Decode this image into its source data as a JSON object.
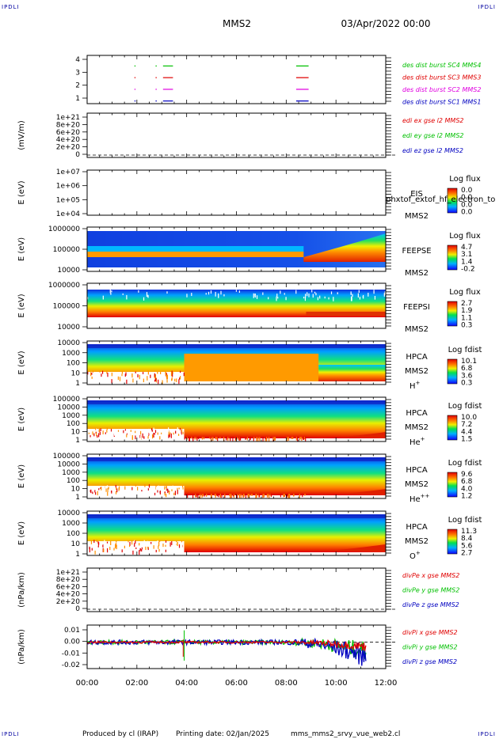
{
  "header": {
    "corner_label": "IPDLI",
    "title": "MMS2",
    "date": "03/Apr/2022 00:00"
  },
  "footer": {
    "produced": "Produced by cl (IRAP)",
    "printing": "Printing date: 02/Jan/2025",
    "file": "mms_mms2_srvy_vue_web2.cl"
  },
  "colors": {
    "bg": "#ffffff",
    "axis": "#000000"
  },
  "chart_data": [
    {
      "type": "line",
      "panel": "burst",
      "ylim": [
        0.5,
        4.5
      ],
      "yticks": [
        "4",
        "3",
        "2",
        "1"
      ],
      "series": [
        {
          "name": "des dist burst SC1 MMS1",
          "color": "#0000c0",
          "y": 1,
          "segments": [
            [
              1.9,
              1.9
            ],
            [
              2.75,
              2.75
            ],
            [
              3.05,
              3.45
            ],
            [
              8.4,
              8.9
            ]
          ]
        },
        {
          "name": "des dist burst SC2 MMS2",
          "color": "#e000e0",
          "y": 2,
          "segments": [
            [
              1.9,
              1.9
            ],
            [
              2.75,
              2.75
            ],
            [
              3.05,
              3.45
            ],
            [
              8.4,
              8.9
            ]
          ]
        },
        {
          "name": "des dist burst SC3 MMS3",
          "color": "#e00000",
          "y": 3,
          "segments": [
            [
              1.9,
              1.9
            ],
            [
              2.75,
              2.75
            ],
            [
              3.05,
              3.45
            ],
            [
              8.4,
              8.9
            ]
          ]
        },
        {
          "name": "des dist burst SC4 MMS4",
          "color": "#00c000",
          "y": 4,
          "segments": [
            [
              1.9,
              1.9
            ],
            [
              2.75,
              2.75
            ],
            [
              3.05,
              3.45
            ],
            [
              8.4,
              8.9
            ]
          ]
        }
      ]
    },
    {
      "type": "line",
      "panel": "edi",
      "ylabel": "(mV/m)",
      "yticks": [
        "1e+21",
        "8e+20",
        "6e+20",
        "4e+20",
        "2e+20",
        "0"
      ],
      "series": [
        {
          "name": "edi ex gse l2 MMS2",
          "color": "#e00000"
        },
        {
          "name": "edi ey gse l2 MMS2",
          "color": "#00c000"
        },
        {
          "name": "edi ez gse l2 MMS2",
          "color": "#0000c0"
        }
      ]
    },
    {
      "type": "heatmap",
      "panel": "eis",
      "ylabel": "E (eV)",
      "yticks": [
        "1e+07",
        "1e+06",
        "1e+05",
        "1e+04"
      ],
      "instrument": [
        "EIS",
        "MMS2"
      ],
      "overlay": "phxtof_extof_hf_electron_to",
      "colorbar": {
        "title": "Log flux",
        "ticks": [
          "0.0",
          "0.0",
          "0.0",
          "0.0"
        ]
      }
    },
    {
      "type": "heatmap",
      "panel": "feepse",
      "ylabel": "E (eV)",
      "yticks": [
        "1000000",
        "100000",
        "10000"
      ],
      "instrument": [
        "FEEPSE",
        "MMS2"
      ],
      "colorbar": {
        "title": "Log flux",
        "ticks": [
          "4.7",
          "3.1",
          "1.4",
          "-0.2"
        ]
      }
    },
    {
      "type": "heatmap",
      "panel": "feepsi",
      "ylabel": "E (eV)",
      "yticks": [
        "1000000",
        "100000",
        "10000"
      ],
      "instrument": [
        "FEEPSI",
        "MMS2"
      ],
      "colorbar": {
        "title": "Log flux",
        "ticks": [
          "2.7",
          "1.9",
          "1.1",
          "0.3"
        ]
      }
    },
    {
      "type": "heatmap",
      "panel": "hpca_h",
      "ylabel": "E (eV)",
      "yticks": [
        "10000",
        "1000",
        "100",
        "10",
        "1"
      ],
      "instrument": [
        "HPCA",
        "MMS2"
      ],
      "species": "H",
      "species_sup": "+",
      "colorbar": {
        "title": "Log fdist",
        "ticks": [
          "10.1",
          "6.8",
          "3.6",
          "0.3"
        ]
      }
    },
    {
      "type": "heatmap",
      "panel": "hpca_he",
      "ylabel": "E (eV)",
      "yticks": [
        "100000",
        "10000",
        "1000",
        "100",
        "10",
        "1"
      ],
      "instrument": [
        "HPCA",
        "MMS2"
      ],
      "species": "He",
      "species_sup": "+",
      "colorbar": {
        "title": "Log fdist",
        "ticks": [
          "10.0",
          "7.2",
          "4.4",
          "1.5"
        ]
      }
    },
    {
      "type": "heatmap",
      "panel": "hpca_he2",
      "ylabel": "E (eV)",
      "yticks": [
        "100000",
        "10000",
        "1000",
        "100",
        "10",
        "1"
      ],
      "instrument": [
        "HPCA",
        "MMS2"
      ],
      "species": "He",
      "species_sup": "++",
      "colorbar": {
        "title": "Log fdist",
        "ticks": [
          "9.6",
          "6.8",
          "4.0",
          "1.2"
        ]
      }
    },
    {
      "type": "heatmap",
      "panel": "hpca_o",
      "ylabel": "E (eV)",
      "yticks": [
        "10000",
        "1000",
        "100",
        "10",
        "1"
      ],
      "instrument": [
        "HPCA",
        "MMS2"
      ],
      "species": "O",
      "species_sup": "+",
      "colorbar": {
        "title": "Log fdist",
        "ticks": [
          "11.3",
          "8.4",
          "5.6",
          "2.7"
        ]
      }
    },
    {
      "type": "line",
      "panel": "divpe",
      "ylabel": "(nPa/km)",
      "yticks": [
        "1e+21",
        "8e+20",
        "6e+20",
        "4e+20",
        "2e+20",
        "0"
      ],
      "series": [
        {
          "name": "divPe x gse MMS2",
          "color": "#e00000"
        },
        {
          "name": "divPe y gse MMS2",
          "color": "#00c000"
        },
        {
          "name": "divPe z gse MMS2",
          "color": "#0000c0"
        }
      ]
    },
    {
      "type": "line",
      "panel": "divpi",
      "ylabel": "(nPa/km)",
      "ylim": [
        -0.02,
        0.013
      ],
      "yticks": [
        "0.01",
        "0.00",
        "-0.01",
        "-0.02"
      ],
      "series": [
        {
          "name": "divPi x gse MMS2",
          "color": "#e00000"
        },
        {
          "name": "divPi y gse MMS2",
          "color": "#00c000"
        },
        {
          "name": "divPi z gse MMS2",
          "color": "#0000c0"
        }
      ]
    }
  ],
  "time_axis": {
    "range_hours": [
      0,
      12
    ],
    "ticks": [
      "00:00",
      "02:00",
      "04:00",
      "06:00",
      "08:00",
      "10:00",
      "12:00"
    ]
  }
}
